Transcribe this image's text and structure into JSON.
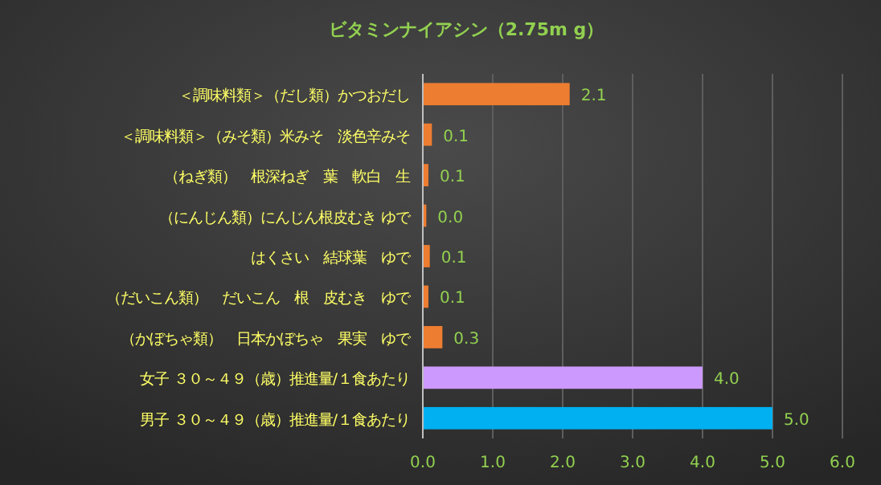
{
  "chart_data": {
    "type": "bar",
    "orientation": "horizontal",
    "title": "ビタミンナイアシン（2.75m g）",
    "categories": [
      "＜調味料類＞（だし類）かつおだし",
      "＜調味料類＞（みそ類）米みそ　淡色辛みそ",
      "（ねぎ類）　根深ねぎ　葉　軟白　生",
      "（にんじん類）にんじん根皮むき ゆで",
      "はくさい　結球葉　ゆで",
      "（だいこん類）　だいこん　根　皮むき　ゆで",
      "（かぼちゃ類）　日本かぼちゃ　果実　ゆで",
      "女子 ３０～４９（歳）推進量/１食あたり",
      "男子 ３０～４９（歳）推進量/１食あたり"
    ],
    "values": [
      2.1,
      0.13,
      0.08,
      0.05,
      0.1,
      0.08,
      0.28,
      4.0,
      5.0
    ],
    "value_labels": [
      "2.1",
      "0.1",
      "0.1",
      "0.0",
      "0.1",
      "0.1",
      "0.3",
      "4.0",
      "5.0"
    ],
    "colors": [
      "#ed7d31",
      "#ed7d31",
      "#ed7d31",
      "#ed7d31",
      "#ed7d31",
      "#ed7d31",
      "#ed7d31",
      "#cc99ff",
      "#00b0f0"
    ],
    "xlim": [
      0,
      6
    ],
    "xticks": [
      {
        "value": 0,
        "label": "0.0"
      },
      {
        "value": 1,
        "label": "1.0"
      },
      {
        "value": 2,
        "label": "2.0"
      },
      {
        "value": 3,
        "label": "3.0"
      },
      {
        "value": 4,
        "label": "4.0"
      },
      {
        "value": 5,
        "label": "5.0"
      },
      {
        "value": 6,
        "label": "6.0"
      }
    ],
    "grid": "x"
  }
}
